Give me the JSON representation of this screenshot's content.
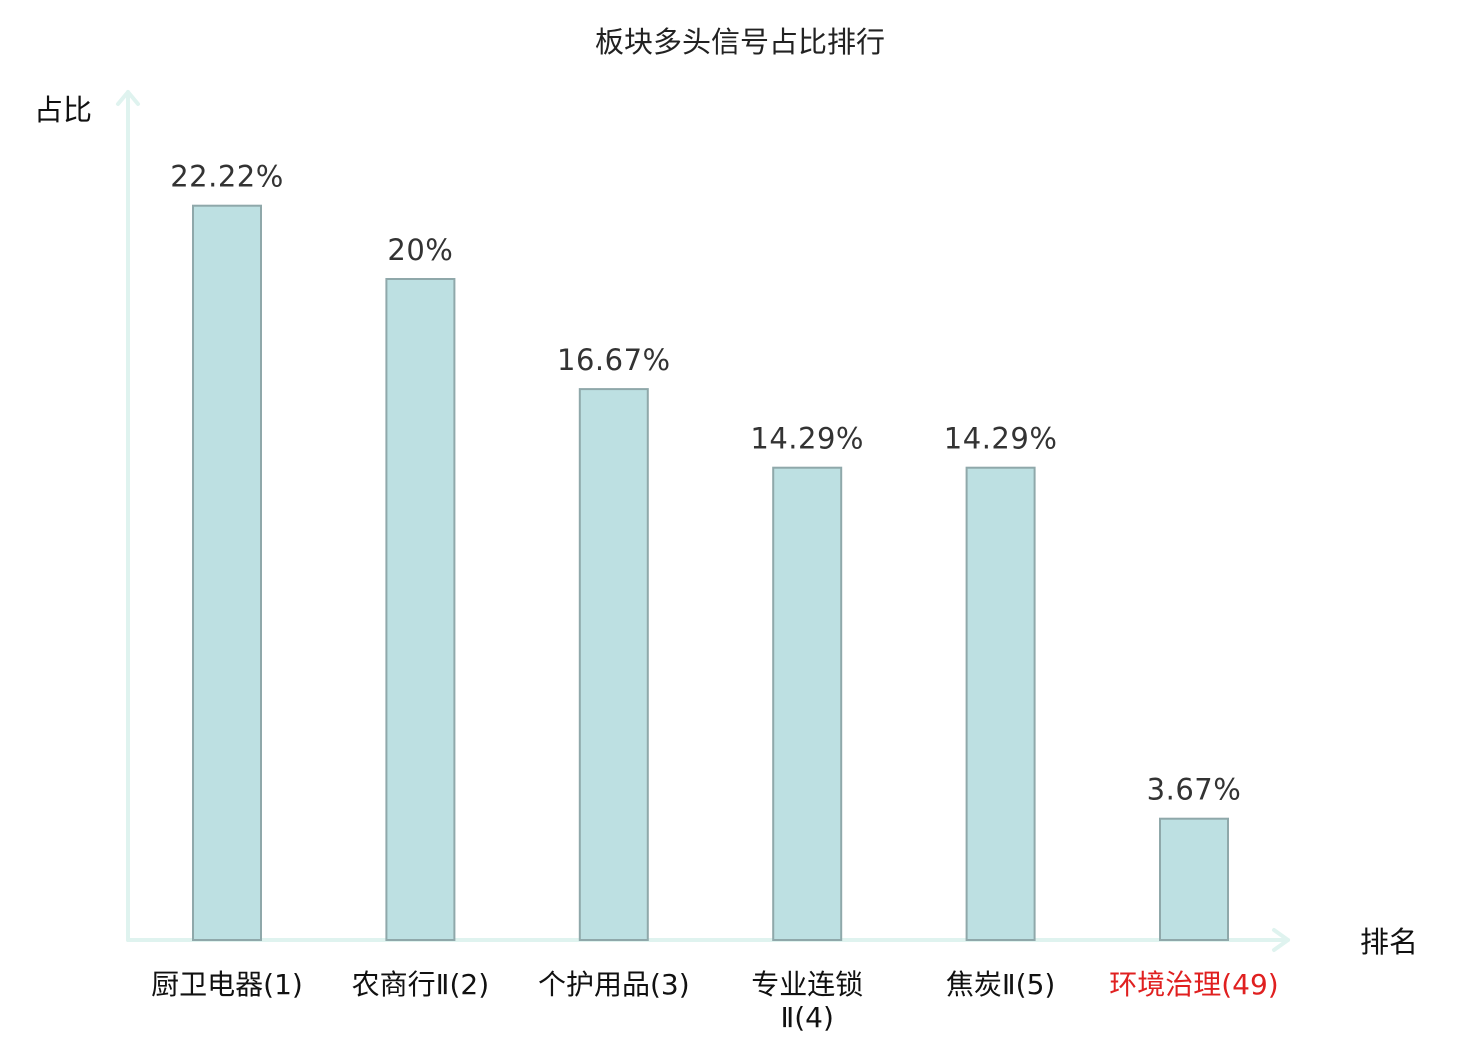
{
  "chart_data": {
    "type": "bar",
    "title": "板块多头信号占比排行",
    "ylabel": "占比",
    "xlabel": "排名",
    "ylim": [
      0,
      24.6
    ],
    "grid": false,
    "categories": [
      {
        "lines": [
          "厨卫电器(1)"
        ],
        "highlight": false
      },
      {
        "lines": [
          "农商行Ⅱ(2)"
        ],
        "highlight": false
      },
      {
        "lines": [
          "个护用品(3)"
        ],
        "highlight": false
      },
      {
        "lines": [
          "专业连锁",
          "Ⅱ(4)"
        ],
        "highlight": false
      },
      {
        "lines": [
          "焦炭Ⅱ(5)"
        ],
        "highlight": false
      },
      {
        "lines": [
          "环境治理(49)"
        ],
        "highlight": true
      }
    ],
    "values": [
      22.22,
      20,
      16.67,
      14.29,
      14.29,
      3.67
    ],
    "value_labels": [
      "22.22%",
      "20%",
      "16.67%",
      "14.29%",
      "14.29%",
      "3.67%"
    ],
    "colors": {
      "bar_fill": "#bde0e2",
      "bar_stroke": "#8fa8aa",
      "axis": "#dff3ef",
      "highlight_label": "#e02020"
    }
  }
}
